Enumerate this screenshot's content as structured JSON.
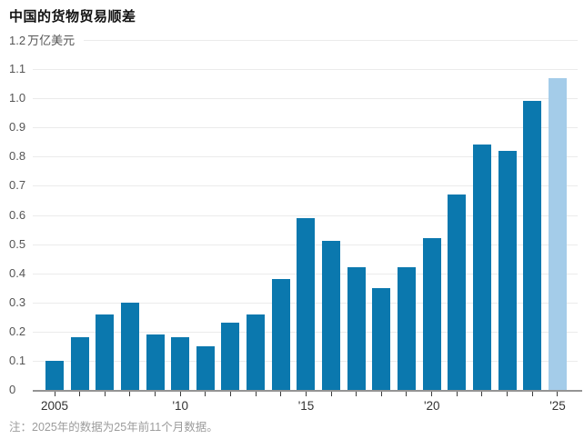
{
  "colors": {
    "bar": "#0b78ae",
    "bar_highlight": "#a4cce9",
    "grid": "#ebebeb",
    "axis_line": "#949494",
    "tick_mark": "#3c3c3c",
    "title_text": "#121212",
    "y_label_text": "#555555",
    "x_label_text": "#333333",
    "note_text": "#9c9c9c"
  },
  "chart_data": {
    "type": "bar",
    "title": "中国的货物贸易顺差",
    "xlabel": "",
    "ylabel": "万亿美元",
    "ylim": [
      0,
      1.2
    ],
    "ytick_step": 0.1,
    "grid": true,
    "categories": [
      "2005",
      "2006",
      "2007",
      "2008",
      "2009",
      "2010",
      "2011",
      "2012",
      "2013",
      "2014",
      "2015",
      "2016",
      "2017",
      "2018",
      "2019",
      "2020",
      "2021",
      "2022",
      "2023",
      "2024",
      "2025"
    ],
    "values": [
      0.1,
      0.18,
      0.26,
      0.3,
      0.19,
      0.18,
      0.15,
      0.23,
      0.26,
      0.38,
      0.59,
      0.51,
      0.42,
      0.35,
      0.42,
      0.52,
      0.67,
      0.84,
      0.82,
      0.99,
      1.07
    ],
    "highlight_index": 20,
    "yticks": [
      "0",
      "0.1",
      "0.2",
      "0.3",
      "0.4",
      "0.5",
      "0.6",
      "0.7",
      "0.8",
      "0.9",
      "1.0",
      "1.1",
      "1.2"
    ],
    "xtick_labels": [
      {
        "index": 0,
        "label": "2005"
      },
      {
        "index": 5,
        "label": "'10"
      },
      {
        "index": 10,
        "label": "'15"
      },
      {
        "index": 15,
        "label": "'20"
      },
      {
        "index": 20,
        "label": "'25"
      }
    ],
    "note": "注：2025年的数据为25年前11个月数据。"
  }
}
